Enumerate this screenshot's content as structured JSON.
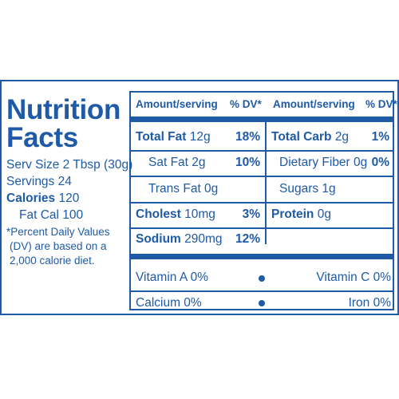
{
  "title_line1": "Nutrition",
  "title_line2": "Facts",
  "serving_size": "Serv Size 2 Tbsp (30g)",
  "servings": "Servings 24",
  "calories_label": "Calories",
  "calories_value": "120",
  "fat_cal": "Fat Cal 100",
  "footnote_line1": "*Percent Daily Values",
  "footnote_line2": "(DV) are based on a",
  "footnote_line3": "2,000 calorie diet.",
  "header": {
    "amount1": "Amount/serving",
    "dv1": "% DV*",
    "amount2": "Amount/serving",
    "dv2": "% DV*"
  },
  "rows": {
    "total_fat_label": "Total Fat",
    "total_fat_amount": "12g",
    "total_fat_dv": "18%",
    "total_carb_label": "Total Carb",
    "total_carb_amount": "2g",
    "total_carb_dv": "1%",
    "sat_fat": "Sat Fat 2g",
    "sat_fat_dv": "10%",
    "dietary_fiber": "Dietary Fiber 0g",
    "dietary_fiber_dv": "0%",
    "trans_fat": "Trans Fat 0g",
    "sugars": "Sugars 1g",
    "cholest_label": "Cholest",
    "cholest_amount": "10mg",
    "cholest_dv": "3%",
    "protein_label": "Protein",
    "protein_amount": "0g",
    "sodium_label": "Sodium",
    "sodium_amount": "290mg",
    "sodium_dv": "12%"
  },
  "vitamins": {
    "vitamin_a": "Vitamin A 0%",
    "vitamin_c": "Vitamin C 0%",
    "calcium": "Calcium 0%",
    "iron": "Iron 0%"
  },
  "colors": {
    "primary": "#1f5aa6",
    "background": "#ffffff"
  }
}
